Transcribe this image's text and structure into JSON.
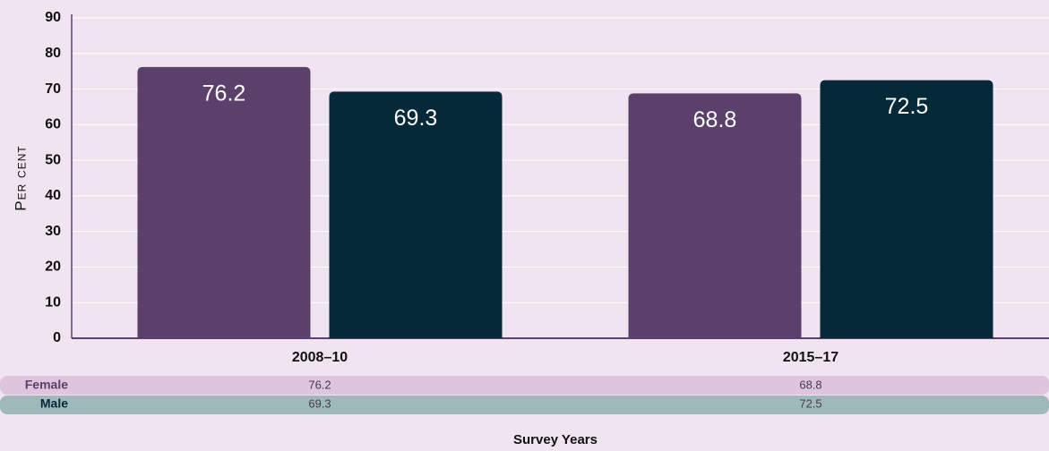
{
  "chart_data": {
    "type": "bar",
    "categories": [
      "2008–10",
      "2015–17"
    ],
    "series": [
      {
        "name": "Female",
        "color": "#5c406c",
        "values": [
          76.2,
          68.8
        ]
      },
      {
        "name": "Male",
        "color": "#042a39",
        "values": [
          69.3,
          72.5
        ]
      }
    ],
    "ylabel": "Per cent",
    "xlabel": "Survey Years",
    "ylim": [
      0,
      90
    ],
    "yticks": [
      0,
      10,
      20,
      30,
      40,
      50,
      60,
      70,
      80,
      90
    ],
    "grid": true
  }
}
